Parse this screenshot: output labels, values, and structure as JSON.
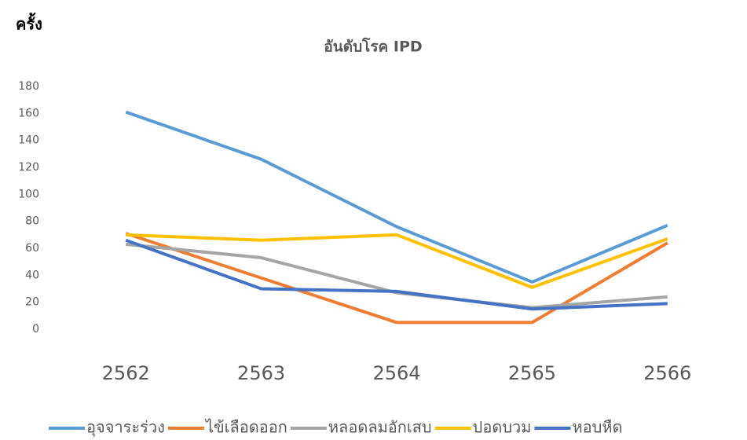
{
  "chart_data": {
    "type": "line",
    "title": "อันดับโรค IPD",
    "y_label": "ครั้ง",
    "categories": [
      "2562",
      "2563",
      "2564",
      "2565",
      "2566"
    ],
    "series": [
      {
        "name": "อุจจาระร่วง",
        "color": "#5b9bd5",
        "values": [
          161,
          126,
          76,
          35,
          77
        ]
      },
      {
        "name": "ไข้เลือดออก",
        "color": "#ed7d31",
        "values": [
          71,
          38,
          5,
          5,
          64
        ]
      },
      {
        "name": "หลอดลมอักเสบ",
        "color": "#a5a5a5",
        "values": [
          63,
          53,
          27,
          16,
          24
        ]
      },
      {
        "name": "ปอดบวม",
        "color": "#ffc000",
        "values": [
          70,
          66,
          70,
          31,
          67
        ]
      },
      {
        "name": "หอบหืด",
        "color": "#4472c4",
        "values": [
          66,
          30,
          28,
          15,
          19
        ]
      }
    ],
    "ylim": [
      0,
      180
    ],
    "yticks": [
      0,
      20,
      40,
      60,
      80,
      100,
      120,
      140,
      160,
      180
    ],
    "grid": false,
    "legend": "bottom"
  }
}
